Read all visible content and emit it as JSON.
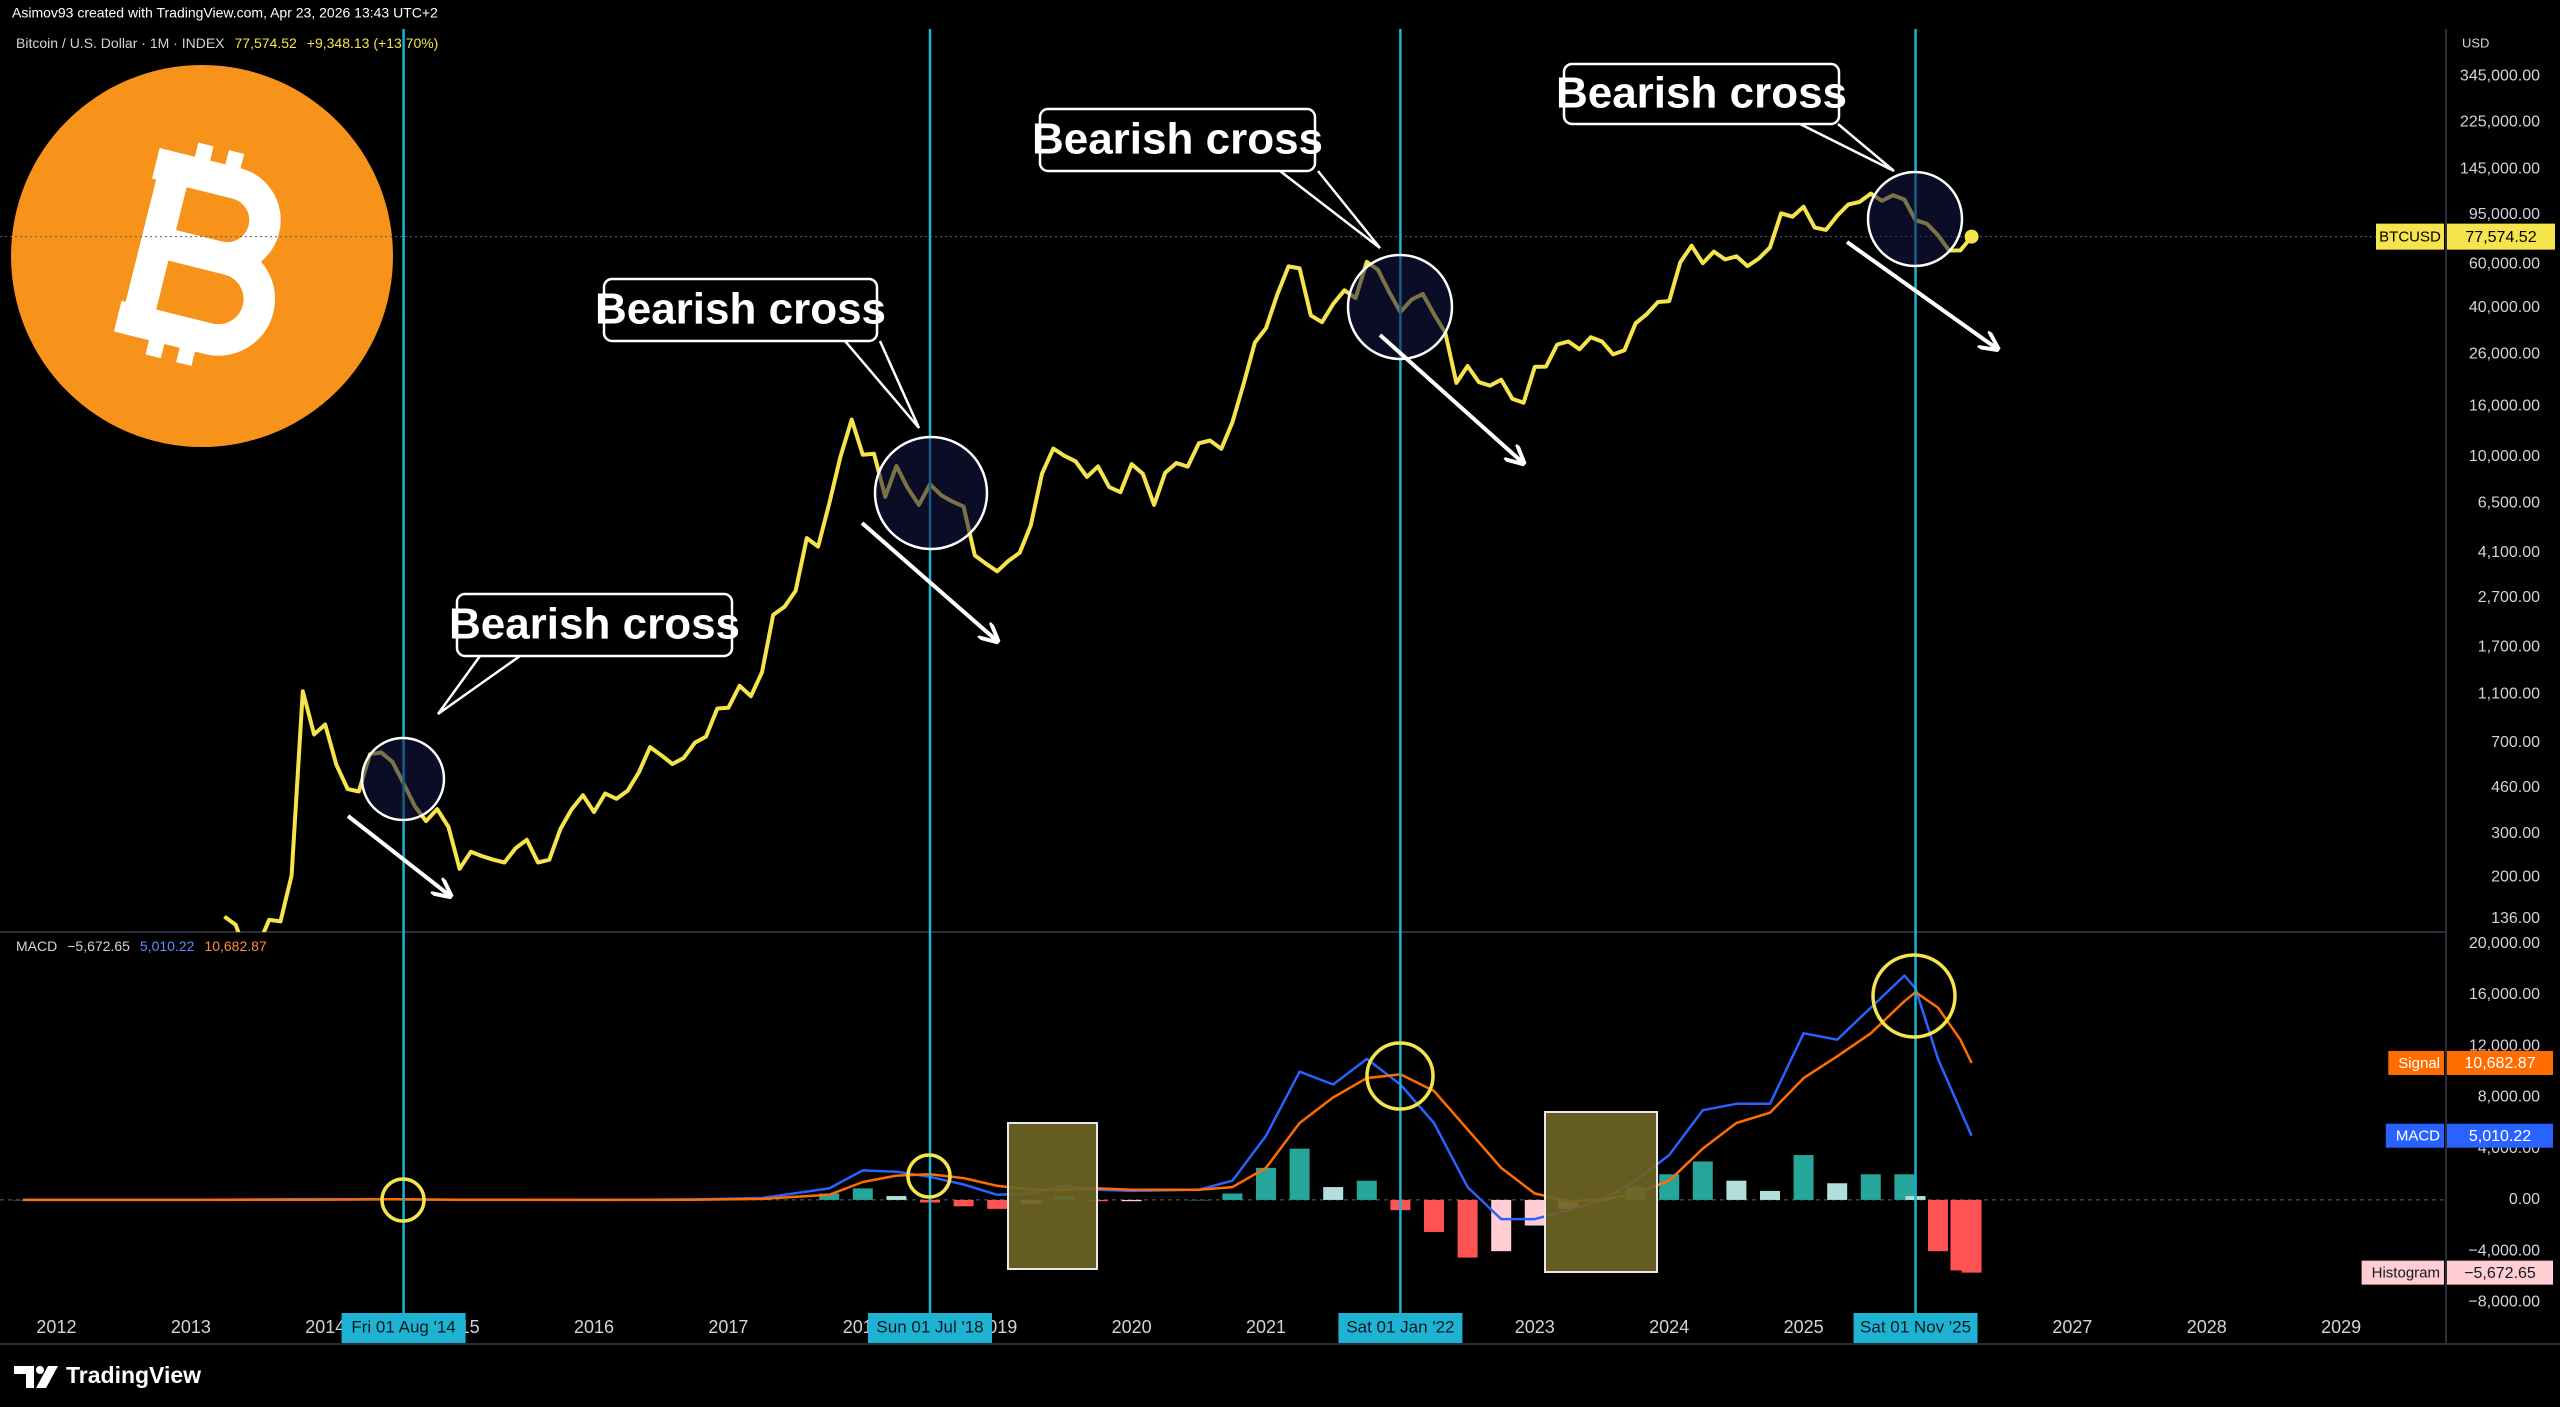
{
  "header": {
    "credit": "Asimov93 created with TradingView.com, Apr 23, 2026 13:43 UTC+2"
  },
  "footer": {
    "brand": "TradingView"
  },
  "chart_data": [
    {
      "type": "line",
      "title": "Bitcoin / U.S. Dollar · 1M · INDEX",
      "change_label": "+9,348.13 (+13.70%)",
      "currency": "USD",
      "log_scale": true,
      "grid": false,
      "x": [
        2013.25,
        2013.333,
        2013.417,
        2013.5,
        2013.583,
        2013.667,
        2013.75,
        2013.833,
        2013.917,
        2014.0,
        2014.083,
        2014.167,
        2014.25,
        2014.333,
        2014.417,
        2014.5,
        2014.583,
        2014.667,
        2014.75,
        2014.833,
        2014.917,
        2015.0,
        2015.083,
        2015.167,
        2015.25,
        2015.333,
        2015.417,
        2015.5,
        2015.583,
        2015.667,
        2015.75,
        2015.833,
        2015.917,
        2016.0,
        2016.083,
        2016.167,
        2016.25,
        2016.333,
        2016.417,
        2016.5,
        2016.583,
        2016.667,
        2016.75,
        2016.833,
        2016.917,
        2017.0,
        2017.083,
        2017.167,
        2017.25,
        2017.333,
        2017.417,
        2017.5,
        2017.583,
        2017.667,
        2017.75,
        2017.833,
        2017.917,
        2018.0,
        2018.083,
        2018.167,
        2018.25,
        2018.333,
        2018.417,
        2018.5,
        2018.583,
        2018.667,
        2018.75,
        2018.833,
        2018.917,
        2019.0,
        2019.083,
        2019.167,
        2019.25,
        2019.333,
        2019.417,
        2019.5,
        2019.583,
        2019.667,
        2019.75,
        2019.833,
        2019.917,
        2020.0,
        2020.083,
        2020.167,
        2020.25,
        2020.333,
        2020.417,
        2020.5,
        2020.583,
        2020.667,
        2020.75,
        2020.833,
        2020.917,
        2021.0,
        2021.083,
        2021.167,
        2021.25,
        2021.333,
        2021.417,
        2021.5,
        2021.583,
        2021.667,
        2021.75,
        2021.833,
        2021.917,
        2022.0,
        2022.083,
        2022.167,
        2022.25,
        2022.333,
        2022.417,
        2022.5,
        2022.583,
        2022.667,
        2022.75,
        2022.833,
        2022.917,
        2023.0,
        2023.083,
        2023.167,
        2023.25,
        2023.333,
        2023.417,
        2023.5,
        2023.583,
        2023.667,
        2023.75,
        2023.833,
        2023.917,
        2024.0,
        2024.083,
        2024.167,
        2024.25,
        2024.333,
        2024.417,
        2024.5,
        2024.583,
        2024.667,
        2024.75,
        2024.833,
        2024.917,
        2025.0,
        2025.083,
        2025.167,
        2025.25,
        2025.333,
        2025.417,
        2025.5,
        2025.583,
        2025.667,
        2025.75,
        2025.833,
        2025.917,
        2026.0,
        2026.083,
        2026.167,
        2026.25
      ],
      "series": [
        {
          "name": "BTCUSD",
          "color": "#f5e44b",
          "last_label": "77,574.52",
          "values": [
            139,
            129,
            97,
            106,
            135,
            133,
            204,
            1130,
            757,
            830,
            570,
            455,
            445,
            630,
            640,
            587,
            480,
            388,
            338,
            378,
            320,
            217,
            254,
            244,
            236,
            230,
            263,
            284,
            230,
            236,
            314,
            377,
            430,
            368,
            437,
            416,
            448,
            531,
            673,
            624,
            575,
            608,
            700,
            742,
            963,
            970,
            1190,
            1080,
            1350,
            2300,
            2480,
            2875,
            4700,
            4340,
            6470,
            10000,
            14150,
            10200,
            10300,
            6900,
            9200,
            7500,
            6400,
            7750,
            7000,
            6600,
            6300,
            4000,
            3700,
            3450,
            3800,
            4100,
            5300,
            8550,
            10800,
            10100,
            9600,
            8300,
            9150,
            7550,
            7200,
            9350,
            8550,
            6400,
            8630,
            9450,
            9140,
            11350,
            11650,
            10780,
            13800,
            19700,
            28990,
            33100,
            45200,
            58800,
            57700,
            37300,
            35000,
            41500,
            47100,
            43800,
            61300,
            57000,
            46300,
            38500,
            43200,
            45500,
            37700,
            31800,
            19900,
            23300,
            20050,
            19400,
            20500,
            17150,
            16550,
            23100,
            23150,
            28450,
            29250,
            27200,
            30450,
            29250,
            25950,
            26950,
            34650,
            37700,
            42250,
            42600,
            61100,
            71300,
            60600,
            67500,
            62700,
            64600,
            58950,
            63300,
            70200,
            96400,
            93400,
            102400,
            84350,
            82550,
            94200,
            104600,
            107150,
            115750,
            108250,
            114050,
            109600,
            90400,
            87500,
            78600,
            68200,
            68226.39,
            77574.52
          ]
        }
      ],
      "xlim": [
        2011.58,
        2029.78
      ],
      "xticks": [
        2012,
        2013,
        2014,
        2015,
        2016,
        2017,
        2018,
        2019,
        2020,
        2021,
        2022,
        2023,
        2024,
        2025,
        2026,
        2027,
        2028,
        2029
      ],
      "ylim": [
        120.5,
        535000
      ],
      "yticks": [
        {
          "value": 345000,
          "label": "345,000.00"
        },
        {
          "value": 225000,
          "label": "225,000.00"
        },
        {
          "value": 145000,
          "label": "145,000.00"
        },
        {
          "value": 95000,
          "label": "95,000.00"
        },
        {
          "value": 60000,
          "label": "60,000.00"
        },
        {
          "value": 40000,
          "label": "40,000.00"
        },
        {
          "value": 26000,
          "label": "26,000.00"
        },
        {
          "value": 16000,
          "label": "16,000.00"
        },
        {
          "value": 10000,
          "label": "10,000.00"
        },
        {
          "value": 6500,
          "label": "6,500.00"
        },
        {
          "value": 4100,
          "label": "4,100.00"
        },
        {
          "value": 2700,
          "label": "2,700.00"
        },
        {
          "value": 1700,
          "label": "1,700.00"
        },
        {
          "value": 1100,
          "label": "1,100.00"
        },
        {
          "value": 700,
          "label": "700.00"
        },
        {
          "value": 460,
          "label": "460.00"
        },
        {
          "value": 300,
          "label": "300.00"
        },
        {
          "value": 200,
          "label": "200.00"
        },
        {
          "value": 136,
          "label": "136.00"
        }
      ],
      "markers": [
        {
          "x": 2014.583,
          "label": "Fri 01 Aug '14"
        },
        {
          "x": 2018.5,
          "label": "Sun 01 Jul '18"
        },
        {
          "x": 2022.0,
          "label": "Sat 01 Jan '22"
        },
        {
          "x": 2025.833,
          "label": "Sat 01 Nov '25"
        }
      ],
      "annotations": [
        "Bearish cross",
        "Bearish cross",
        "Bearish cross",
        "Bearish cross"
      ]
    },
    {
      "type": "macd",
      "title": "MACD",
      "x": [
        2011.75,
        2013.0,
        2013.917,
        2014.5,
        2015.0,
        2016.0,
        2016.75,
        2017.25,
        2017.75,
        2018.0,
        2018.25,
        2018.5,
        2018.75,
        2019.0,
        2019.25,
        2019.5,
        2019.75,
        2020.0,
        2020.5,
        2020.75,
        2021.0,
        2021.25,
        2021.5,
        2021.75,
        2022.0,
        2022.25,
        2022.5,
        2022.75,
        2023.0,
        2023.25,
        2023.5,
        2023.75,
        2024.0,
        2024.25,
        2024.5,
        2024.75,
        2025.0,
        2025.25,
        2025.5,
        2025.75,
        2025.833,
        2026.0,
        2026.167,
        2026.25
      ],
      "series": [
        {
          "name": "Histogram",
          "color": "#ffcdd2",
          "colors": [
            "#26a69a",
            "#b2dfdb",
            "#ffcdd2",
            "#ff5252"
          ],
          "last_label": "−5,672.65",
          "values": [
            0,
            0,
            40,
            5,
            -20,
            0,
            20,
            70,
            500,
            900,
            300,
            -200,
            -500,
            -700,
            -300,
            300,
            -100,
            -100,
            0,
            500,
            2500,
            4000,
            1000,
            1500,
            -800,
            -2500,
            -4500,
            -4000,
            -2000,
            -700,
            0,
            1000,
            2000,
            3000,
            1500,
            700,
            3500,
            1300,
            2000,
            2000,
            300,
            -4000,
            -5500,
            -5672.65
          ]
        },
        {
          "name": "MACD",
          "color": "#2962ff",
          "last_label": "5,010.22",
          "values": [
            0,
            0,
            60,
            50,
            0,
            0,
            40,
            150,
            900,
            2300,
            2200,
            1800,
            1200,
            400,
            500,
            1100,
            800,
            700,
            800,
            1500,
            5000,
            10000,
            9000,
            11000,
            9000,
            6000,
            1000,
            -1500,
            -1500,
            -800,
            0,
            1500,
            3500,
            7000,
            7500,
            7500,
            13000,
            12500,
            15000,
            17500,
            16500,
            11000,
            7000,
            5010.22
          ]
        },
        {
          "name": "Signal",
          "color": "#ff6d00",
          "last_label": "10,682.87",
          "values": [
            0,
            0,
            20,
            45,
            20,
            0,
            20,
            80,
            400,
            1400,
            1900,
            2000,
            1700,
            1100,
            800,
            800,
            900,
            800,
            800,
            1000,
            2500,
            6000,
            8000,
            9500,
            9800,
            8500,
            5500,
            2500,
            500,
            -100,
            0,
            500,
            1500,
            4000,
            6000,
            6800,
            9500,
            11200,
            13000,
            15500,
            16200,
            15000,
            12500,
            10682.87
          ]
        }
      ],
      "ylim": [
        -8900,
        20900
      ],
      "yticks": [
        {
          "value": 20000,
          "label": "20,000.00"
        },
        {
          "value": 16000,
          "label": "16,000.00"
        },
        {
          "value": 12000,
          "label": "12,000.00"
        },
        {
          "value": 8000,
          "label": "8,000.00"
        },
        {
          "value": 4000,
          "label": "4,000.00"
        },
        {
          "value": 0,
          "label": "0.00"
        },
        {
          "value": -4000,
          "label": "−4,000.00"
        },
        {
          "value": -8000,
          "label": "−8,000.00"
        }
      ]
    }
  ]
}
